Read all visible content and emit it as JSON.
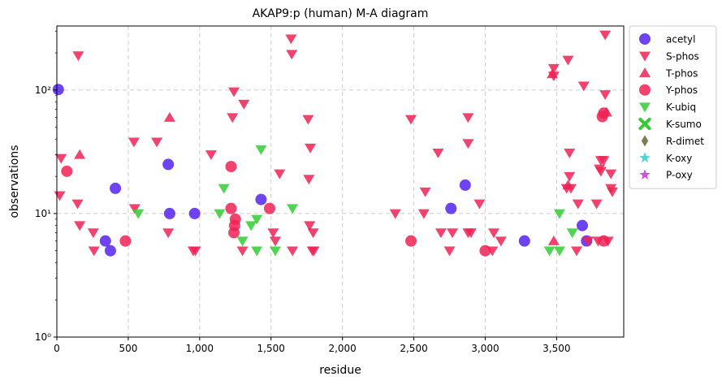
{
  "chart_data": {
    "type": "scatter",
    "title": "AKAP9:p (human) M-A diagram",
    "xlabel": "residue",
    "ylabel": "observations",
    "xlim": [
      0,
      3970
    ],
    "ylim": [
      1,
      330
    ],
    "y_scale": "log",
    "x_ticks": [
      0,
      500,
      1000,
      1500,
      2000,
      2500,
      3000,
      3500
    ],
    "x_tick_labels": [
      "0",
      "500",
      "1,000",
      "1,500",
      "2,000",
      "2,500",
      "3,000",
      "3,500"
    ],
    "y_ticks": [
      1,
      10,
      100
    ],
    "y_tick_labels": [
      "10⁰",
      "10¹",
      "10²"
    ],
    "grid": "dashed",
    "legend_position": "outside-right",
    "series": [
      {
        "name": "acetyl",
        "marker": "circle",
        "color": "#5522ee",
        "points": [
          [
            10,
            101
          ],
          [
            340,
            6
          ],
          [
            375,
            5
          ],
          [
            410,
            16
          ],
          [
            780,
            25
          ],
          [
            790,
            10
          ],
          [
            965,
            10
          ],
          [
            1430,
            13
          ],
          [
            2760,
            11
          ],
          [
            2860,
            17
          ],
          [
            3275,
            6
          ],
          [
            3680,
            8
          ],
          [
            3710,
            6
          ]
        ]
      },
      {
        "name": "S-phos",
        "marker": "triangle-down",
        "color": "#ee2255",
        "points": [
          [
            20,
            14
          ],
          [
            30,
            28
          ],
          [
            145,
            12
          ],
          [
            150,
            190
          ],
          [
            160,
            8
          ],
          [
            255,
            7
          ],
          [
            260,
            5
          ],
          [
            540,
            38
          ],
          [
            545,
            11
          ],
          [
            700,
            38
          ],
          [
            780,
            7
          ],
          [
            955,
            5
          ],
          [
            970,
            5
          ],
          [
            1080,
            30
          ],
          [
            1230,
            60
          ],
          [
            1240,
            97
          ],
          [
            1300,
            5
          ],
          [
            1310,
            77
          ],
          [
            1515,
            7
          ],
          [
            1530,
            6
          ],
          [
            1560,
            21
          ],
          [
            1640,
            260
          ],
          [
            1645,
            195
          ],
          [
            1650,
            5
          ],
          [
            1760,
            58
          ],
          [
            1765,
            19
          ],
          [
            1770,
            8
          ],
          [
            1775,
            34
          ],
          [
            1790,
            5
          ],
          [
            1795,
            7
          ],
          [
            1800,
            5
          ],
          [
            2370,
            10
          ],
          [
            2480,
            58
          ],
          [
            2570,
            10
          ],
          [
            2580,
            15
          ],
          [
            2670,
            31
          ],
          [
            2690,
            7
          ],
          [
            2750,
            5
          ],
          [
            2770,
            7
          ],
          [
            2880,
            7
          ],
          [
            2880,
            37
          ],
          [
            2880,
            60
          ],
          [
            2900,
            7
          ],
          [
            2960,
            12
          ],
          [
            3050,
            5
          ],
          [
            3060,
            7
          ],
          [
            3110,
            6
          ],
          [
            3480,
            150
          ],
          [
            3480,
            130
          ],
          [
            3570,
            16
          ],
          [
            3580,
            175
          ],
          [
            3590,
            20
          ],
          [
            3590,
            31
          ],
          [
            3600,
            16
          ],
          [
            3640,
            5
          ],
          [
            3650,
            12
          ],
          [
            3690,
            108
          ],
          [
            3720,
            6
          ],
          [
            3780,
            12
          ],
          [
            3790,
            6
          ],
          [
            3800,
            23
          ],
          [
            3810,
            22
          ],
          [
            3810,
            27
          ],
          [
            3830,
            27
          ],
          [
            3840,
            92
          ],
          [
            3840,
            280
          ],
          [
            3880,
            21
          ],
          [
            3880,
            16
          ],
          [
            3890,
            15
          ],
          [
            3860,
            6
          ]
        ]
      },
      {
        "name": "T-phos",
        "marker": "triangle-up",
        "color": "#ee2255",
        "points": [
          [
            160,
            30
          ],
          [
            790,
            60
          ],
          [
            3470,
            135
          ],
          [
            3480,
            6
          ],
          [
            3580,
            17
          ],
          [
            3850,
            66
          ]
        ]
      },
      {
        "name": "Y-phos",
        "marker": "circle",
        "color": "#ee2255",
        "points": [
          [
            70,
            22
          ],
          [
            480,
            6
          ],
          [
            1220,
            24
          ],
          [
            1220,
            11
          ],
          [
            1240,
            7
          ],
          [
            1245,
            8
          ],
          [
            1250,
            9
          ],
          [
            1490,
            11
          ],
          [
            2480,
            6
          ],
          [
            3000,
            5
          ],
          [
            3820,
            61
          ],
          [
            3830,
            65
          ],
          [
            3830,
            6
          ]
        ]
      },
      {
        "name": "K-ubiq",
        "marker": "triangle-down",
        "color": "#33cc33",
        "points": [
          [
            570,
            10
          ],
          [
            1140,
            10
          ],
          [
            1170,
            16
          ],
          [
            1300,
            6
          ],
          [
            1360,
            8
          ],
          [
            1400,
            9
          ],
          [
            1400,
            5
          ],
          [
            1430,
            33
          ],
          [
            1530,
            5
          ],
          [
            1650,
            11
          ],
          [
            3450,
            5
          ],
          [
            3520,
            10
          ],
          [
            3520,
            5
          ],
          [
            3610,
            7
          ]
        ]
      },
      {
        "name": "K-sumo",
        "marker": "x",
        "color": "#33cc33",
        "points": []
      },
      {
        "name": "R-dimet",
        "marker": "diamond",
        "color": "#666633",
        "points": []
      },
      {
        "name": "K-oxy",
        "marker": "star",
        "color": "#33cccc",
        "points": []
      },
      {
        "name": "P-oxy",
        "marker": "star",
        "color": "#cc33cc",
        "points": []
      }
    ]
  }
}
